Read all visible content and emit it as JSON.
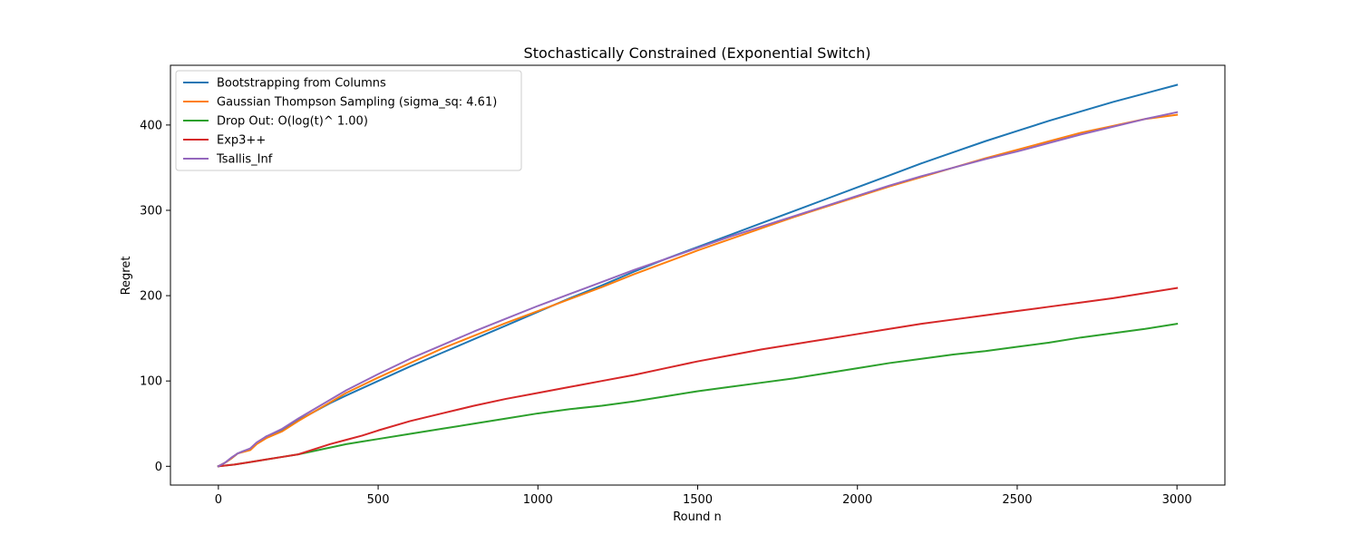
{
  "chart_data": {
    "type": "line",
    "title": "Stochastically Constrained (Exponential Switch)",
    "xlabel": "Round n",
    "ylabel": "Regret",
    "xlim": [
      -150,
      3150
    ],
    "ylim": [
      -22,
      470
    ],
    "xticks": [
      0,
      500,
      1000,
      1500,
      2000,
      2500,
      3000
    ],
    "yticks": [
      0,
      100,
      200,
      300,
      400
    ],
    "grid": false,
    "legend_position": "top-left",
    "series": [
      {
        "name": "Bootstrapping from Columns",
        "color": "#1f77b4",
        "points": [
          [
            0,
            0
          ],
          [
            20,
            4
          ],
          [
            40,
            9
          ],
          [
            60,
            15
          ],
          [
            80,
            18
          ],
          [
            100,
            20
          ],
          [
            120,
            27
          ],
          [
            150,
            35
          ],
          [
            200,
            42
          ],
          [
            250,
            54
          ],
          [
            300,
            64
          ],
          [
            350,
            74
          ],
          [
            400,
            83
          ],
          [
            500,
            100
          ],
          [
            600,
            117
          ],
          [
            700,
            133
          ],
          [
            800,
            149
          ],
          [
            900,
            165
          ],
          [
            1000,
            181
          ],
          [
            1100,
            197
          ],
          [
            1200,
            212
          ],
          [
            1300,
            228
          ],
          [
            1400,
            243
          ],
          [
            1500,
            257
          ],
          [
            1600,
            271
          ],
          [
            1700,
            285
          ],
          [
            1800,
            299
          ],
          [
            1900,
            313
          ],
          [
            2000,
            327
          ],
          [
            2100,
            341
          ],
          [
            2200,
            355
          ],
          [
            2300,
            368
          ],
          [
            2400,
            381
          ],
          [
            2500,
            393
          ],
          [
            2600,
            405
          ],
          [
            2700,
            416
          ],
          [
            2800,
            427
          ],
          [
            2900,
            437
          ],
          [
            3000,
            447
          ]
        ]
      },
      {
        "name": "Gaussian Thompson Sampling (sigma_sq: 4.61)",
        "color": "#ff7f0e",
        "points": [
          [
            0,
            0
          ],
          [
            20,
            4
          ],
          [
            40,
            9
          ],
          [
            60,
            15
          ],
          [
            80,
            17
          ],
          [
            100,
            19
          ],
          [
            120,
            26
          ],
          [
            150,
            33
          ],
          [
            200,
            41
          ],
          [
            250,
            53
          ],
          [
            300,
            64
          ],
          [
            350,
            75
          ],
          [
            400,
            86
          ],
          [
            500,
            104
          ],
          [
            600,
            121
          ],
          [
            700,
            138
          ],
          [
            800,
            153
          ],
          [
            900,
            168
          ],
          [
            1000,
            182
          ],
          [
            1100,
            196
          ],
          [
            1200,
            210
          ],
          [
            1300,
            225
          ],
          [
            1400,
            239
          ],
          [
            1500,
            253
          ],
          [
            1600,
            266
          ],
          [
            1700,
            279
          ],
          [
            1800,
            292
          ],
          [
            1900,
            304
          ],
          [
            2000,
            316
          ],
          [
            2100,
            328
          ],
          [
            2200,
            339
          ],
          [
            2300,
            350
          ],
          [
            2400,
            361
          ],
          [
            2500,
            371
          ],
          [
            2600,
            381
          ],
          [
            2700,
            391
          ],
          [
            2800,
            399
          ],
          [
            2900,
            407
          ],
          [
            3000,
            412
          ]
        ]
      },
      {
        "name": "Drop Out: O(log(t)^ 1.00)",
        "color": "#2ca02c",
        "points": [
          [
            0,
            0
          ],
          [
            50,
            2
          ],
          [
            100,
            5
          ],
          [
            150,
            8
          ],
          [
            200,
            11
          ],
          [
            250,
            14
          ],
          [
            300,
            18
          ],
          [
            350,
            22
          ],
          [
            400,
            26
          ],
          [
            450,
            29
          ],
          [
            500,
            32
          ],
          [
            600,
            38
          ],
          [
            700,
            44
          ],
          [
            800,
            50
          ],
          [
            900,
            56
          ],
          [
            1000,
            62
          ],
          [
            1100,
            67
          ],
          [
            1200,
            71
          ],
          [
            1300,
            76
          ],
          [
            1400,
            82
          ],
          [
            1500,
            88
          ],
          [
            1600,
            93
          ],
          [
            1700,
            98
          ],
          [
            1800,
            103
          ],
          [
            1900,
            109
          ],
          [
            2000,
            115
          ],
          [
            2100,
            121
          ],
          [
            2200,
            126
          ],
          [
            2300,
            131
          ],
          [
            2400,
            135
          ],
          [
            2500,
            140
          ],
          [
            2600,
            145
          ],
          [
            2700,
            151
          ],
          [
            2800,
            156
          ],
          [
            2900,
            161
          ],
          [
            3000,
            167
          ]
        ]
      },
      {
        "name": "Exp3++",
        "color": "#d62728",
        "points": [
          [
            0,
            0
          ],
          [
            50,
            2
          ],
          [
            100,
            5
          ],
          [
            150,
            8
          ],
          [
            200,
            11
          ],
          [
            250,
            14
          ],
          [
            300,
            20
          ],
          [
            350,
            26
          ],
          [
            400,
            31
          ],
          [
            450,
            36
          ],
          [
            500,
            42
          ],
          [
            600,
            53
          ],
          [
            700,
            62
          ],
          [
            800,
            71
          ],
          [
            900,
            79
          ],
          [
            1000,
            86
          ],
          [
            1100,
            93
          ],
          [
            1200,
            100
          ],
          [
            1300,
            107
          ],
          [
            1400,
            115
          ],
          [
            1500,
            123
          ],
          [
            1600,
            130
          ],
          [
            1700,
            137
          ],
          [
            1800,
            143
          ],
          [
            1900,
            149
          ],
          [
            2000,
            155
          ],
          [
            2100,
            161
          ],
          [
            2200,
            167
          ],
          [
            2300,
            172
          ],
          [
            2400,
            177
          ],
          [
            2500,
            182
          ],
          [
            2600,
            187
          ],
          [
            2700,
            192
          ],
          [
            2800,
            197
          ],
          [
            2900,
            203
          ],
          [
            3000,
            209
          ]
        ]
      },
      {
        "name": "Tsallis_Inf",
        "color": "#9467bd",
        "points": [
          [
            0,
            0
          ],
          [
            20,
            4
          ],
          [
            40,
            10
          ],
          [
            60,
            15
          ],
          [
            80,
            18
          ],
          [
            100,
            21
          ],
          [
            120,
            28
          ],
          [
            150,
            35
          ],
          [
            200,
            44
          ],
          [
            250,
            56
          ],
          [
            300,
            67
          ],
          [
            350,
            78
          ],
          [
            400,
            89
          ],
          [
            500,
            108
          ],
          [
            600,
            126
          ],
          [
            700,
            142
          ],
          [
            800,
            158
          ],
          [
            900,
            173
          ],
          [
            1000,
            188
          ],
          [
            1100,
            202
          ],
          [
            1200,
            216
          ],
          [
            1300,
            230
          ],
          [
            1400,
            243
          ],
          [
            1500,
            256
          ],
          [
            1600,
            269
          ],
          [
            1700,
            281
          ],
          [
            1800,
            293
          ],
          [
            1900,
            305
          ],
          [
            2000,
            317
          ],
          [
            2100,
            329
          ],
          [
            2200,
            340
          ],
          [
            2300,
            350
          ],
          [
            2400,
            360
          ],
          [
            2500,
            369
          ],
          [
            2600,
            379
          ],
          [
            2700,
            389
          ],
          [
            2800,
            398
          ],
          [
            2900,
            407
          ],
          [
            3000,
            415
          ]
        ]
      }
    ]
  }
}
